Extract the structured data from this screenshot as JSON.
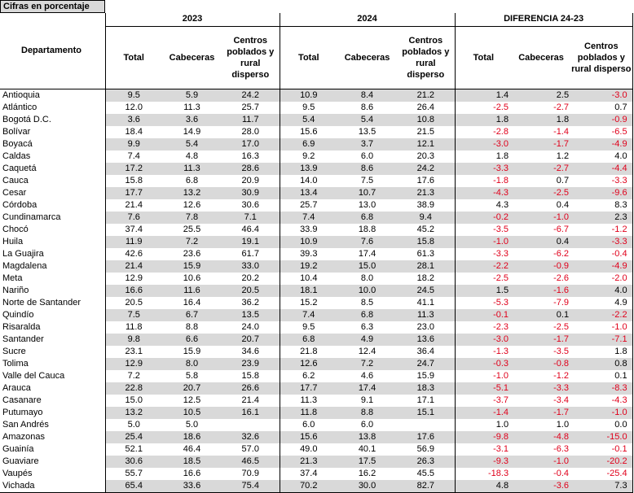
{
  "caption": "Cifras en porcentaje",
  "header": {
    "department": "Departamento",
    "groups": [
      "2023",
      "2024",
      "DIFERENCIA 24-23"
    ],
    "subcolumns": [
      "Total",
      "Cabeceras",
      "Centros poblados y rural disperso"
    ]
  },
  "colors": {
    "negative": "#e0001b",
    "shade": "#d9d9d9"
  },
  "rows": [
    {
      "name": "Antioquia",
      "v": [
        "9.5",
        "5.9",
        "24.2",
        "10.9",
        "8.4",
        "21.2",
        "1.4",
        "2.5",
        "-3.0"
      ]
    },
    {
      "name": "Atlántico",
      "v": [
        "12.0",
        "11.3",
        "25.7",
        "9.5",
        "8.6",
        "26.4",
        "-2.5",
        "-2.7",
        "0.7"
      ]
    },
    {
      "name": "Bogotá D.C.",
      "v": [
        "3.6",
        "3.6",
        "11.7",
        "5.4",
        "5.4",
        "10.8",
        "1.8",
        "1.8",
        "-0.9"
      ]
    },
    {
      "name": "Bolívar",
      "v": [
        "18.4",
        "14.9",
        "28.0",
        "15.6",
        "13.5",
        "21.5",
        "-2.8",
        "-1.4",
        "-6.5"
      ]
    },
    {
      "name": "Boyacá",
      "v": [
        "9.9",
        "5.4",
        "17.0",
        "6.9",
        "3.7",
        "12.1",
        "-3.0",
        "-1.7",
        "-4.9"
      ]
    },
    {
      "name": "Caldas",
      "v": [
        "7.4",
        "4.8",
        "16.3",
        "9.2",
        "6.0",
        "20.3",
        "1.8",
        "1.2",
        "4.0"
      ]
    },
    {
      "name": "Caquetá",
      "v": [
        "17.2",
        "11.3",
        "28.6",
        "13.9",
        "8.6",
        "24.2",
        "-3.3",
        "-2.7",
        "-4.4"
      ]
    },
    {
      "name": "Cauca",
      "v": [
        "15.8",
        "6.8",
        "20.9",
        "14.0",
        "7.5",
        "17.6",
        "-1.8",
        "0.7",
        "-3.3"
      ]
    },
    {
      "name": "Cesar",
      "v": [
        "17.7",
        "13.2",
        "30.9",
        "13.4",
        "10.7",
        "21.3",
        "-4.3",
        "-2.5",
        "-9.6"
      ]
    },
    {
      "name": "Córdoba",
      "v": [
        "21.4",
        "12.6",
        "30.6",
        "25.7",
        "13.0",
        "38.9",
        "4.3",
        "0.4",
        "8.3"
      ]
    },
    {
      "name": "Cundinamarca",
      "v": [
        "7.6",
        "7.8",
        "7.1",
        "7.4",
        "6.8",
        "9.4",
        "-0.2",
        "-1.0",
        "2.3"
      ]
    },
    {
      "name": "Chocó",
      "v": [
        "37.4",
        "25.5",
        "46.4",
        "33.9",
        "18.8",
        "45.2",
        "-3.5",
        "-6.7",
        "-1.2"
      ]
    },
    {
      "name": "Huila",
      "v": [
        "11.9",
        "7.2",
        "19.1",
        "10.9",
        "7.6",
        "15.8",
        "-1.0",
        "0.4",
        "-3.3"
      ]
    },
    {
      "name": "La Guajira",
      "v": [
        "42.6",
        "23.6",
        "61.7",
        "39.3",
        "17.4",
        "61.3",
        "-3.3",
        "-6.2",
        "-0.4"
      ]
    },
    {
      "name": "Magdalena",
      "v": [
        "21.4",
        "15.9",
        "33.0",
        "19.2",
        "15.0",
        "28.1",
        "-2.2",
        "-0.9",
        "-4.9"
      ]
    },
    {
      "name": "Meta",
      "v": [
        "12.9",
        "10.6",
        "20.2",
        "10.4",
        "8.0",
        "18.2",
        "-2.5",
        "-2.6",
        "-2.0"
      ]
    },
    {
      "name": "Nariño",
      "v": [
        "16.6",
        "11.6",
        "20.5",
        "18.1",
        "10.0",
        "24.5",
        "1.5",
        "-1.6",
        "4.0"
      ]
    },
    {
      "name": "Norte de Santander",
      "v": [
        "20.5",
        "16.4",
        "36.2",
        "15.2",
        "8.5",
        "41.1",
        "-5.3",
        "-7.9",
        "4.9"
      ]
    },
    {
      "name": "Quindío",
      "v": [
        "7.5",
        "6.7",
        "13.5",
        "7.4",
        "6.8",
        "11.3",
        "-0.1",
        "0.1",
        "-2.2"
      ]
    },
    {
      "name": "Risaralda",
      "v": [
        "11.8",
        "8.8",
        "24.0",
        "9.5",
        "6.3",
        "23.0",
        "-2.3",
        "-2.5",
        "-1.0"
      ]
    },
    {
      "name": "Santander",
      "v": [
        "9.8",
        "6.6",
        "20.7",
        "6.8",
        "4.9",
        "13.6",
        "-3.0",
        "-1.7",
        "-7.1"
      ]
    },
    {
      "name": "Sucre",
      "v": [
        "23.1",
        "15.9",
        "34.6",
        "21.8",
        "12.4",
        "36.4",
        "-1.3",
        "-3.5",
        "1.8"
      ]
    },
    {
      "name": "Tolima",
      "v": [
        "12.9",
        "8.0",
        "23.9",
        "12.6",
        "7.2",
        "24.7",
        "-0.3",
        "-0.8",
        "0.8"
      ]
    },
    {
      "name": "Valle del Cauca",
      "v": [
        "7.2",
        "5.8",
        "15.8",
        "6.2",
        "4.6",
        "15.9",
        "-1.0",
        "-1.2",
        "0.1"
      ]
    },
    {
      "name": "Arauca",
      "v": [
        "22.8",
        "20.7",
        "26.6",
        "17.7",
        "17.4",
        "18.3",
        "-5.1",
        "-3.3",
        "-8.3"
      ]
    },
    {
      "name": "Casanare",
      "v": [
        "15.0",
        "12.5",
        "21.4",
        "11.3",
        "9.1",
        "17.1",
        "-3.7",
        "-3.4",
        "-4.3"
      ]
    },
    {
      "name": "Putumayo",
      "v": [
        "13.2",
        "10.5",
        "16.1",
        "11.8",
        "8.8",
        "15.1",
        "-1.4",
        "-1.7",
        "-1.0"
      ]
    },
    {
      "name": "San Andrés",
      "v": [
        "5.0",
        "5.0",
        "",
        "6.0",
        "6.0",
        "",
        "1.0",
        "1.0",
        "0.0"
      ]
    },
    {
      "name": "Amazonas",
      "v": [
        "25.4",
        "18.6",
        "32.6",
        "15.6",
        "13.8",
        "17.6",
        "-9.8",
        "-4.8",
        "-15.0"
      ]
    },
    {
      "name": "Guainía",
      "v": [
        "52.1",
        "46.4",
        "57.0",
        "49.0",
        "40.1",
        "56.9",
        "-3.1",
        "-6.3",
        "-0.1"
      ]
    },
    {
      "name": "Guaviare",
      "v": [
        "30.6",
        "18.5",
        "46.5",
        "21.3",
        "17.5",
        "26.3",
        "-9.3",
        "-1.0",
        "-20.2"
      ]
    },
    {
      "name": "Vaupés",
      "v": [
        "55.7",
        "16.6",
        "70.9",
        "37.4",
        "16.2",
        "45.5",
        "-18.3",
        "-0.4",
        "-25.4"
      ]
    },
    {
      "name": "Vichada",
      "v": [
        "65.4",
        "33.6",
        "75.4",
        "70.2",
        "30.0",
        "82.7",
        "4.8",
        "-3.6",
        "7.3"
      ]
    }
  ]
}
